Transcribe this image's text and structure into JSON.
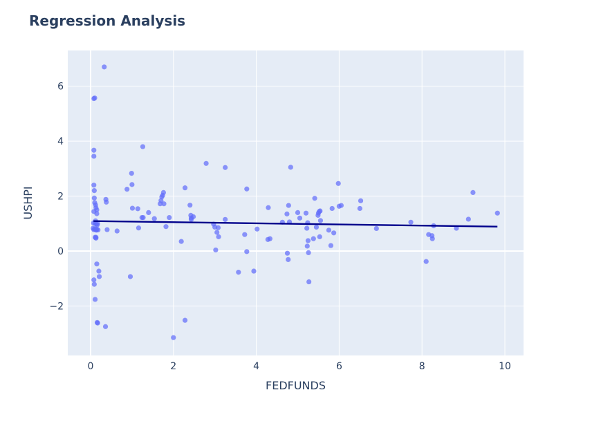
{
  "chart_data": {
    "type": "scatter",
    "title": "Regression Analysis",
    "xlabel": "FEDFUNDS",
    "ylabel": "USHPI",
    "xlim": [
      -0.55,
      10.45
    ],
    "ylim": [
      -3.8,
      7.3
    ],
    "xticks": [
      0,
      2,
      4,
      6,
      8,
      10
    ],
    "xtick_labels": [
      "0",
      "2",
      "4",
      "6",
      "8",
      "10"
    ],
    "yticks": [
      -2,
      0,
      2,
      4,
      6
    ],
    "ytick_labels": [
      "−2",
      "0",
      "2",
      "4",
      "6"
    ],
    "grid": true,
    "colors": {
      "plot_bg": "#e5ecf6",
      "grid": "#ffffff",
      "points": "#636efa",
      "regression_line": "#00008b",
      "title": "#2a3f5f",
      "axis_text": "#2a3f5f"
    },
    "series": [
      {
        "type": "scatter",
        "x": [
          0.33,
          0.08,
          0.1,
          0.08,
          0.08,
          0.08,
          0.09,
          0.09,
          0.1,
          0.08,
          0.12,
          0.13,
          0.15,
          0.07,
          0.11,
          0.12,
          0.14,
          0.15,
          0.16,
          0.17,
          0.06,
          0.08,
          0.1,
          0.12,
          0.14,
          0.11,
          0.13,
          0.13,
          0.15,
          0.18,
          0.2,
          0.21,
          0.08,
          0.09,
          0.11,
          0.15,
          0.16,
          0.17,
          0.36,
          0.37,
          0.38,
          0.4,
          0.64,
          0.88,
          0.96,
          0.99,
          1.0,
          1.01,
          1.14,
          1.16,
          1.24,
          1.26,
          1.27,
          1.4,
          1.54,
          1.68,
          1.7,
          1.72,
          1.74,
          1.76,
          1.77,
          1.82,
          1.9,
          2.0,
          2.19,
          2.28,
          2.28,
          2.4,
          2.42,
          2.43,
          2.43,
          2.48,
          2.79,
          2.97,
          3.0,
          3.02,
          3.05,
          3.08,
          3.09,
          3.25,
          3.25,
          3.57,
          3.72,
          3.77,
          3.77,
          3.94,
          4.02,
          4.28,
          4.29,
          4.33,
          4.63,
          4.74,
          4.75,
          4.77,
          4.78,
          4.8,
          4.83,
          5.0,
          5.05,
          5.2,
          5.22,
          5.23,
          5.24,
          5.25,
          5.26,
          5.27,
          5.38,
          5.41,
          5.45,
          5.49,
          5.5,
          5.52,
          5.53,
          5.54,
          5.55,
          5.8,
          5.83,
          5.87,
          5.98,
          6.0,
          6.05,
          6.5,
          6.52,
          6.9,
          7.73,
          8.1,
          8.16,
          8.24,
          8.25,
          8.28,
          8.83,
          9.12,
          9.23,
          9.82,
          5.75
        ],
        "y": [
          6.7,
          5.55,
          5.57,
          3.67,
          3.45,
          2.4,
          2.2,
          1.93,
          1.76,
          1.44,
          1.68,
          1.58,
          1.5,
          1.02,
          1.0,
          1.1,
          0.98,
          1.36,
          0.95,
          1.0,
          0.83,
          0.78,
          0.81,
          0.78,
          0.76,
          0.5,
          0.47,
          0.5,
          0.8,
          0.77,
          -0.73,
          -0.93,
          -1.05,
          -1.21,
          -1.76,
          -0.47,
          -2.6,
          -2.62,
          -2.75,
          1.88,
          1.78,
          0.78,
          0.73,
          2.25,
          -0.93,
          2.83,
          2.42,
          1.56,
          1.54,
          0.84,
          1.22,
          3.8,
          1.22,
          1.4,
          1.18,
          1.72,
          1.84,
          1.97,
          2.03,
          2.13,
          1.72,
          0.89,
          1.22,
          -3.15,
          0.35,
          2.3,
          -2.52,
          1.67,
          1.3,
          1.2,
          1.15,
          1.25,
          3.19,
          0.98,
          0.87,
          0.04,
          0.68,
          0.85,
          0.52,
          3.04,
          1.15,
          -0.77,
          0.6,
          -0.02,
          2.26,
          -0.73,
          0.8,
          0.42,
          1.58,
          0.45,
          1.05,
          1.35,
          -0.08,
          -0.31,
          1.66,
          1.06,
          3.05,
          1.4,
          1.2,
          1.38,
          0.83,
          0.18,
          1.03,
          0.38,
          -0.06,
          -1.12,
          0.45,
          1.92,
          0.87,
          1.3,
          1.38,
          1.44,
          0.52,
          1.46,
          1.11,
          0.2,
          1.55,
          0.66,
          2.46,
          1.63,
          1.66,
          1.55,
          1.83,
          0.82,
          1.05,
          -0.38,
          0.6,
          0.56,
          0.45,
          0.92,
          0.83,
          1.16,
          2.13,
          1.38,
          0.76
        ]
      },
      {
        "type": "line",
        "x": [
          0.07,
          9.82
        ],
        "y": [
          1.09,
          0.89
        ]
      }
    ]
  }
}
